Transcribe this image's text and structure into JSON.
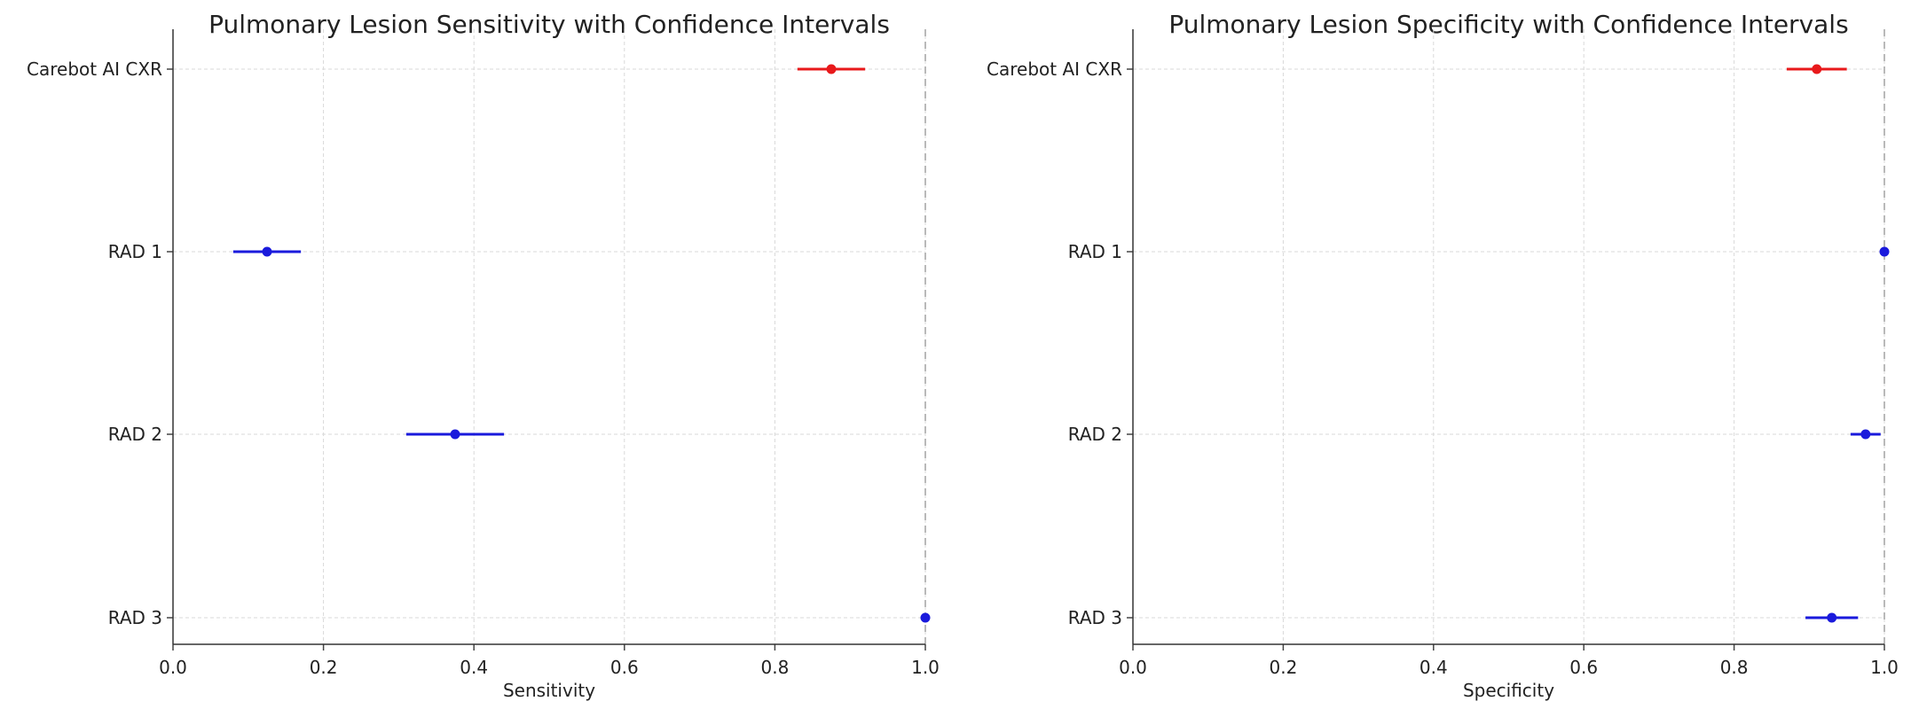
{
  "chart_data": [
    {
      "type": "scatter",
      "title": "Pulmonary Lesion Sensitivity with Confidence Intervals",
      "xlabel": "Sensitivity",
      "ylabel": "",
      "xlim": [
        0.0,
        1.0
      ],
      "xticks": [
        "0.0",
        "0.2",
        "0.4",
        "0.6",
        "0.8",
        "1.0"
      ],
      "grid": true,
      "categories": [
        "Carebot AI CXR",
        "RAD 1",
        "RAD 2",
        "RAD 3"
      ],
      "values": [
        0.875,
        0.125,
        0.375,
        1.0
      ],
      "ci_low": [
        0.83,
        0.08,
        0.31,
        1.0
      ],
      "ci_high": [
        0.92,
        0.17,
        0.44,
        1.0
      ],
      "colors": [
        "#e8191b",
        "#1a1adc",
        "#1a1adc",
        "#1a1adc"
      ],
      "reference_line": 1.0
    },
    {
      "type": "scatter",
      "title": "Pulmonary Lesion Specificity with Confidence Intervals",
      "xlabel": "Specificity",
      "ylabel": "",
      "xlim": [
        0.0,
        1.0
      ],
      "xticks": [
        "0.0",
        "0.2",
        "0.4",
        "0.6",
        "0.8",
        "1.0"
      ],
      "grid": true,
      "categories": [
        "Carebot AI CXR",
        "RAD 1",
        "RAD 2",
        "RAD 3"
      ],
      "values": [
        0.91,
        1.0,
        0.975,
        0.93
      ],
      "ci_low": [
        0.87,
        1.0,
        0.955,
        0.895
      ],
      "ci_high": [
        0.95,
        1.0,
        0.995,
        0.965
      ],
      "colors": [
        "#e8191b",
        "#1a1adc",
        "#1a1adc",
        "#1a1adc"
      ],
      "reference_line": 1.0
    }
  ]
}
